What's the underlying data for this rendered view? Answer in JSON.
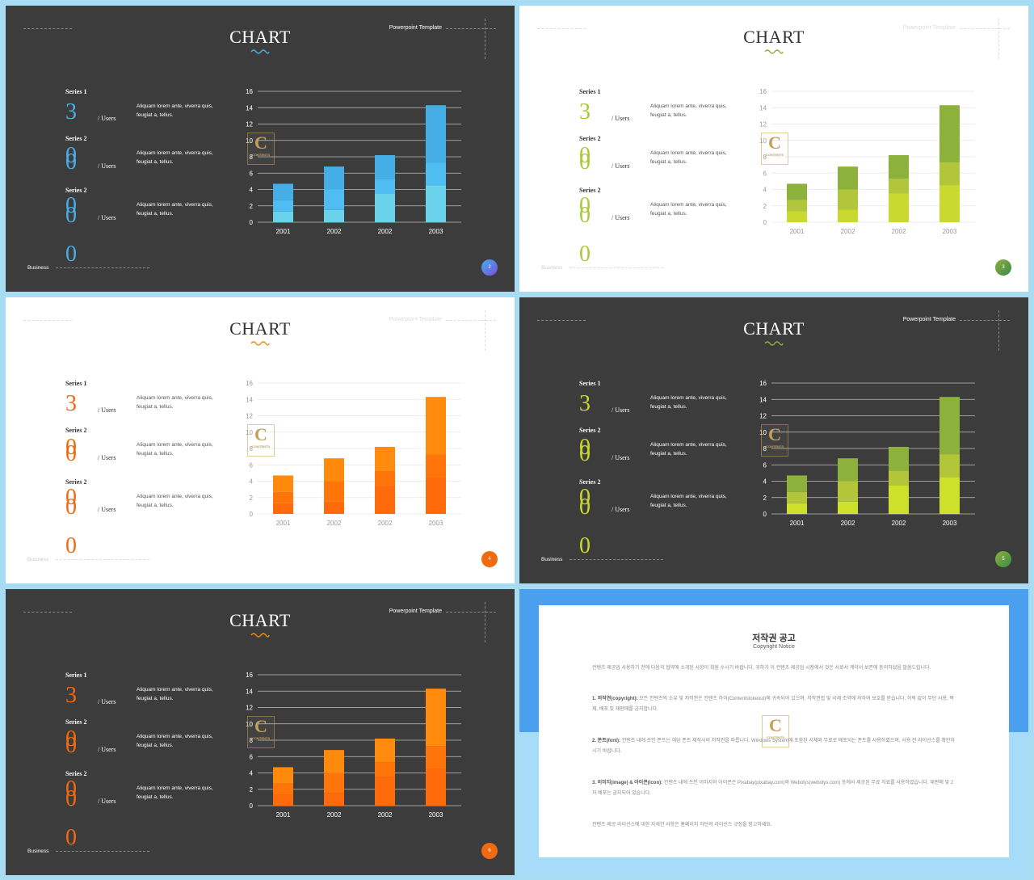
{
  "slides": [
    {
      "theme": "dark",
      "accent": "#4aaee6",
      "colors": [
        "#6ad2ea",
        "#4fbdf2",
        "#45aee6"
      ],
      "wave": "#4aaee6",
      "page": "2",
      "title": "CHART",
      "template": "Powerpoint Template",
      "business": "Business",
      "series": [
        {
          "name": "Series 1",
          "value": "3",
          "users": "/ Users",
          "desc": "Aliquam lorem ante, viverra quis, feugiat a, tellus."
        },
        {
          "name": "Series 2",
          "value": "0",
          "users": "/ Users",
          "desc": "Aliquam lorem ante, viverra quis, feugiat a, tellus."
        },
        {
          "name": "Series 2",
          "value": "0",
          "users": "/ Users",
          "desc": "Aliquam lorem ante, viverra quis, feugiat a, tellus."
        }
      ],
      "extra_value": "0"
    },
    {
      "theme": "light",
      "accent": "#a8c93a",
      "colors": [
        "#c9d92f",
        "#b2c63b",
        "#8db23c"
      ],
      "wave": "#8db23c",
      "page": "3",
      "title": "CHART",
      "template": "Powerpoint Template",
      "business": "Business",
      "series": [
        {
          "name": "Series 1",
          "value": "3",
          "users": "/ Users",
          "desc": "Aliquam lorem ante, viverra quis, feugiat a, tellus."
        },
        {
          "name": "Series 2",
          "value": "0",
          "users": "/ Users",
          "desc": "Aliquam lorem ante, viverra quis, feugiat a, tellus."
        },
        {
          "name": "Series 2",
          "value": "0",
          "users": "/ Users",
          "desc": "Aliquam lorem ante, viverra quis, feugiat a, tellus."
        }
      ],
      "extra_value": "0"
    },
    {
      "theme": "light",
      "accent": "#f06a10",
      "colors": [
        "#ff6a0a",
        "#ff750a",
        "#ff8a0c"
      ],
      "wave": "#f58a10",
      "page": "4",
      "title": "CHART",
      "template": "Powerpoint Template",
      "business": "Business",
      "series": [
        {
          "name": "Series 1",
          "value": "3",
          "users": "/ Users",
          "desc": "Aliquam lorem ante, viverra quis, feugiat a, tellus."
        },
        {
          "name": "Series 2",
          "value": "0",
          "users": "/ Users",
          "desc": "Aliquam lorem ante, viverra quis, feugiat a, tellus."
        },
        {
          "name": "Series 2",
          "value": "0",
          "users": "/ Users",
          "desc": "Aliquam lorem ante, viverra quis, feugiat a, tellus."
        }
      ],
      "extra_value": "0"
    },
    {
      "theme": "dark",
      "accent": "#c8d92a",
      "colors": [
        "#cde02a",
        "#b3c63a",
        "#8db23c"
      ],
      "wave": "#8db23c",
      "page": "5",
      "title": "CHART",
      "template": "Powerpoint Template",
      "business": "Business",
      "series": [
        {
          "name": "Series 1",
          "value": "3",
          "users": "/ Users",
          "desc": "Aliquam lorem ante, viverra quis, feugiat a, tellus."
        },
        {
          "name": "Series 2",
          "value": "0",
          "users": "/ Users",
          "desc": "Aliquam lorem ante, viverra quis, feugiat a, tellus."
        },
        {
          "name": "Series 2",
          "value": "0",
          "users": "/ Users",
          "desc": "Aliquam lorem ante, viverra quis, feugiat a, tellus."
        }
      ],
      "extra_value": "0"
    },
    {
      "theme": "dark",
      "accent": "#f06a10",
      "colors": [
        "#ff6a0a",
        "#ff750a",
        "#ff8a0c"
      ],
      "wave": "#f58a10",
      "page": "6",
      "title": "CHART",
      "template": "Powerpoint Template",
      "business": "Business",
      "series": [
        {
          "name": "Series 1",
          "value": "3",
          "users": "/ Users",
          "desc": "Aliquam lorem ante, viverra quis, feugiat a, tellus."
        },
        {
          "name": "Series 2",
          "value": "0",
          "users": "/ Users",
          "desc": "Aliquam lorem ante, viverra quis, feugiat a, tellus."
        },
        {
          "name": "Series 2",
          "value": "0",
          "users": "/ Users",
          "desc": "Aliquam lorem ante, viverra quis, feugiat a, tellus."
        }
      ],
      "extra_value": "0"
    }
  ],
  "logo": {
    "letter": "C",
    "text": "CONTENTS"
  },
  "chart_data": {
    "type": "bar",
    "categories": [
      "2001",
      "2002",
      "2002",
      "2003"
    ],
    "series": [
      {
        "values": [
          1.3,
          1.5,
          3.5,
          4.5
        ]
      },
      {
        "values": [
          1.4,
          2.5,
          1.8,
          2.8
        ]
      },
      {
        "values": [
          2.0,
          2.8,
          2.9,
          7.0
        ]
      }
    ],
    "ylim": [
      0,
      16
    ],
    "yticks": [
      0,
      2,
      4,
      6,
      8,
      10,
      12,
      14,
      16
    ],
    "grid": true
  },
  "copyright": {
    "title": "저작권 공고",
    "subtitle": "Copyright Notice",
    "p1": "컨텐츠 제공업 사용하기 전에 다음의 협약에 소개된 사항이 회원 수시기 바랍니다. 귀하가 이 컨텐츠 제공업 시장에서 것은 서로서 계약서 보존에 동의하셨음 말씀드립니다.",
    "p2_head": "1. 저작권(copyright):",
    "p2": "모든 컨텐츠의 소유 및 저작권은 컨텐츠 하이(Contentstokeout)에 귀속되어 있으며, 저작권법 및 국제 조약에 의하여 보호를 받습니다. 허락 없이 무단 사용, 복제, 배포 및 재판매를 금지합니다.",
    "p3_head": "2. 폰트(font):",
    "p3": "컨텐츠 내에 쓰인 폰트는 해당 폰트 제작사의 저작권을 따릅니다. Windows System에 포함된 서체와 무료로 배포되는 폰트를 사용하였으며, 사용 전 라이선스를 확인하시기 바랍니다.",
    "p4_head": "3. 이미지(image) & 아이콘(icon):",
    "p4": "컨텐츠 내에 쓰인 이미지와 아이콘은 Pixabay(pixabay.com)와 Webolys(webolys.com) 등에서 제공된 무료 자료를 사용하였습니다. 재판매 및 2차 배포는 금지되어 있습니다.",
    "p5": "컨텐츠 제공 라이선스에 대한 자세한 사항은 홈페이지 하단의 라이선스 규정을 참고하세요."
  }
}
